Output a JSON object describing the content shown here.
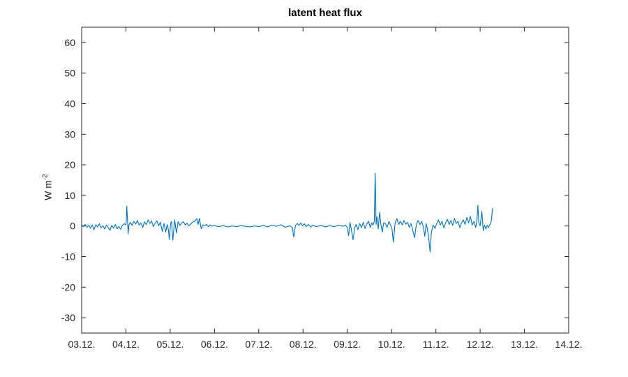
{
  "figure": {
    "title": "latent heat flux",
    "ylabel_base": "W m",
    "ylabel_exp": "-2",
    "background_color": "#ffffff",
    "axis_color": "#262626",
    "title_color": "#000000"
  },
  "chart_data": {
    "type": "line",
    "title": "latent heat flux",
    "xlabel": "",
    "ylabel": "W m^-2",
    "xlim": [
      0,
      11
    ],
    "ylim": [
      -35,
      65
    ],
    "grid": false,
    "legend": null,
    "x_tick_values": [
      0,
      1,
      2,
      3,
      4,
      5,
      6,
      7,
      8,
      9,
      10,
      11
    ],
    "x_tick_labels": [
      "03.12.",
      "04.12.",
      "05.12.",
      "06.12.",
      "07.12.",
      "08.12.",
      "09.12.",
      "10.12.",
      "11.12.",
      "12.12.",
      "13.12.",
      "14.12."
    ],
    "y_ticks": [
      -30,
      -20,
      -10,
      0,
      10,
      20,
      30,
      40,
      50,
      60
    ],
    "series": [
      {
        "name": "latent heat flux",
        "color": "#0072BD",
        "x_unit": "days since 03.12.",
        "points": [
          [
            0.0,
            0.4
          ],
          [
            0.04,
            -0.2
          ],
          [
            0.08,
            0.5
          ],
          [
            0.12,
            -0.4
          ],
          [
            0.16,
            0.2
          ],
          [
            0.2,
            -0.7
          ],
          [
            0.24,
            0.3
          ],
          [
            0.28,
            -1.2
          ],
          [
            0.32,
            0.4
          ],
          [
            0.36,
            -0.3
          ],
          [
            0.4,
            0.7
          ],
          [
            0.44,
            -0.6
          ],
          [
            0.48,
            0.1
          ],
          [
            0.52,
            -1.0
          ],
          [
            0.56,
            0.3
          ],
          [
            0.6,
            -0.5
          ],
          [
            0.64,
            -1.4
          ],
          [
            0.68,
            0.2
          ],
          [
            0.72,
            -0.7
          ],
          [
            0.76,
            0.5
          ],
          [
            0.8,
            -0.9
          ],
          [
            0.84,
            -0.1
          ],
          [
            0.88,
            -1.1
          ],
          [
            0.92,
            0.2
          ],
          [
            0.96,
            0.7
          ],
          [
            1.0,
            0.4
          ],
          [
            1.01,
            2.0
          ],
          [
            1.02,
            6.5
          ],
          [
            1.04,
            1.0
          ],
          [
            1.05,
            -2.6
          ],
          [
            1.07,
            0.4
          ],
          [
            1.1,
            1.2
          ],
          [
            1.14,
            0.2
          ],
          [
            1.18,
            1.5
          ],
          [
            1.22,
            0.6
          ],
          [
            1.26,
            1.8
          ],
          [
            1.3,
            0.3
          ],
          [
            1.34,
            1.0
          ],
          [
            1.38,
            -0.5
          ],
          [
            1.42,
            1.4
          ],
          [
            1.46,
            0.4
          ],
          [
            1.5,
            2.0
          ],
          [
            1.54,
            0.8
          ],
          [
            1.58,
            1.6
          ],
          [
            1.62,
            -0.2
          ],
          [
            1.66,
            0.9
          ],
          [
            1.7,
            1.7
          ],
          [
            1.74,
            0.1
          ],
          [
            1.78,
            1.2
          ],
          [
            1.82,
            -1.8
          ],
          [
            1.86,
            0.8
          ],
          [
            1.9,
            -2.0
          ],
          [
            1.93,
            0.5
          ],
          [
            1.96,
            -1.2
          ],
          [
            1.98,
            -4.4
          ],
          [
            2.01,
            0.8
          ],
          [
            2.03,
            1.5
          ],
          [
            2.06,
            -4.7
          ],
          [
            2.1,
            2.0
          ],
          [
            2.14,
            -2.3
          ],
          [
            2.18,
            1.4
          ],
          [
            2.22,
            0.2
          ],
          [
            2.26,
            1.0
          ],
          [
            2.3,
            1.4
          ],
          [
            2.34,
            0.3
          ],
          [
            2.38,
            0.9
          ],
          [
            2.42,
            0.1
          ],
          [
            2.46,
            0.6
          ],
          [
            2.5,
            1.2
          ],
          [
            2.55,
            1.5
          ],
          [
            2.6,
            2.4
          ],
          [
            2.63,
            0.5
          ],
          [
            2.66,
            2.5
          ],
          [
            2.7,
            -0.9
          ],
          [
            2.74,
            0.4
          ],
          [
            2.78,
            0.1
          ],
          [
            2.82,
            0.5
          ],
          [
            2.86,
            -0.2
          ],
          [
            2.9,
            0.3
          ],
          [
            2.95,
            0.0
          ],
          [
            3.0,
            0.1
          ],
          [
            3.1,
            -0.2
          ],
          [
            3.2,
            0.1
          ],
          [
            3.3,
            -0.3
          ],
          [
            3.4,
            0.0
          ],
          [
            3.5,
            -0.2
          ],
          [
            3.6,
            0.1
          ],
          [
            3.7,
            -0.1
          ],
          [
            3.8,
            -0.3
          ],
          [
            3.9,
            0.0
          ],
          [
            4.0,
            -0.2
          ],
          [
            4.1,
            0.2
          ],
          [
            4.2,
            -0.3
          ],
          [
            4.3,
            0.3
          ],
          [
            4.4,
            -0.1
          ],
          [
            4.5,
            0.4
          ],
          [
            4.6,
            -0.4
          ],
          [
            4.7,
            0.1
          ],
          [
            4.76,
            -0.5
          ],
          [
            4.79,
            -3.6
          ],
          [
            4.83,
            0.2
          ],
          [
            4.87,
            0.8
          ],
          [
            4.91,
            0.2
          ],
          [
            4.95,
            1.0
          ],
          [
            4.99,
            0.1
          ],
          [
            5.03,
            0.7
          ],
          [
            5.07,
            -0.2
          ],
          [
            5.12,
            0.5
          ],
          [
            5.17,
            -0.3
          ],
          [
            5.22,
            0.3
          ],
          [
            5.3,
            -0.2
          ],
          [
            5.4,
            0.2
          ],
          [
            5.5,
            -0.3
          ],
          [
            5.6,
            0.1
          ],
          [
            5.7,
            -0.2
          ],
          [
            5.8,
            0.2
          ],
          [
            5.9,
            -0.1
          ],
          [
            5.96,
            0.3
          ],
          [
            6.0,
            -0.5
          ],
          [
            6.03,
            -3.2
          ],
          [
            6.06,
            1.2
          ],
          [
            6.09,
            -1.0
          ],
          [
            6.13,
            -4.5
          ],
          [
            6.17,
            -0.5
          ],
          [
            6.2,
            0.5
          ],
          [
            6.24,
            -1.2
          ],
          [
            6.28,
            0.8
          ],
          [
            6.32,
            -0.5
          ],
          [
            6.36,
            1.2
          ],
          [
            6.4,
            -0.8
          ],
          [
            6.44,
            0.6
          ],
          [
            6.48,
            1.5
          ],
          [
            6.52,
            -0.5
          ],
          [
            6.55,
            1.0
          ],
          [
            6.58,
            0.3
          ],
          [
            6.61,
            1.5
          ],
          [
            6.63,
            17.3
          ],
          [
            6.65,
            0.5
          ],
          [
            6.67,
            3.0
          ],
          [
            6.7,
            -1.0
          ],
          [
            6.73,
            4.5
          ],
          [
            6.76,
            0.3
          ],
          [
            6.79,
            -2.0
          ],
          [
            6.82,
            1.0
          ],
          [
            6.86,
            0.8
          ],
          [
            6.9,
            -0.5
          ],
          [
            6.94,
            1.5
          ],
          [
            6.98,
            0.2
          ],
          [
            7.01,
            -1.0
          ],
          [
            7.04,
            -5.3
          ],
          [
            7.08,
            1.0
          ],
          [
            7.12,
            2.4
          ],
          [
            7.16,
            0.5
          ],
          [
            7.2,
            1.5
          ],
          [
            7.24,
            0.3
          ],
          [
            7.28,
            1.8
          ],
          [
            7.32,
            0.6
          ],
          [
            7.36,
            1.2
          ],
          [
            7.4,
            -0.4
          ],
          [
            7.44,
            0.8
          ],
          [
            7.48,
            -1.5
          ],
          [
            7.52,
            -3.8
          ],
          [
            7.56,
            0.5
          ],
          [
            7.6,
            1.8
          ],
          [
            7.64,
            0.4
          ],
          [
            7.68,
            1.5
          ],
          [
            7.72,
            -0.5
          ],
          [
            7.75,
            -3.4
          ],
          [
            7.78,
            0.8
          ],
          [
            7.81,
            -1.0
          ],
          [
            7.84,
            -4.2
          ],
          [
            7.87,
            -8.5
          ],
          [
            7.9,
            -2.0
          ],
          [
            7.94,
            0.3
          ],
          [
            7.98,
            -0.8
          ],
          [
            8.02,
            0.8
          ],
          [
            8.06,
            2.0
          ],
          [
            8.1,
            0.3
          ],
          [
            8.14,
            1.5
          ],
          [
            8.18,
            -0.6
          ],
          [
            8.22,
            1.0
          ],
          [
            8.26,
            2.2
          ],
          [
            8.3,
            0.5
          ],
          [
            8.34,
            1.8
          ],
          [
            8.38,
            0.2
          ],
          [
            8.42,
            2.5
          ],
          [
            8.46,
            0.8
          ],
          [
            8.5,
            1.5
          ],
          [
            8.54,
            -0.5
          ],
          [
            8.58,
            1.0
          ],
          [
            8.62,
            2.0
          ],
          [
            8.66,
            0.5
          ],
          [
            8.7,
            2.8
          ],
          [
            8.74,
            1.0
          ],
          [
            8.78,
            3.2
          ],
          [
            8.82,
            0.3
          ],
          [
            8.86,
            1.5
          ],
          [
            8.9,
            -0.5
          ],
          [
            8.93,
            2.0
          ],
          [
            8.95,
            6.8
          ],
          [
            8.97,
            1.0
          ],
          [
            9.0,
            0.1
          ],
          [
            9.04,
            4.8
          ],
          [
            9.07,
            -1.5
          ],
          [
            9.1,
            0.3
          ],
          [
            9.13,
            -1.0
          ],
          [
            9.16,
            0.2
          ],
          [
            9.19,
            -0.5
          ],
          [
            9.22,
            0.4
          ],
          [
            9.25,
            1.5
          ],
          [
            9.28,
            5.8
          ]
        ]
      }
    ]
  }
}
